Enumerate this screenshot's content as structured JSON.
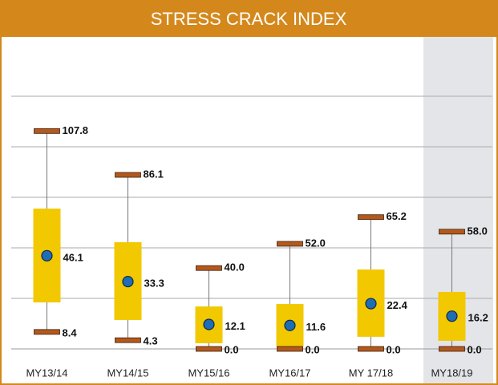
{
  "chart_data": {
    "type": "box",
    "title": "STRESS CRACK INDEX",
    "categories": [
      "MY13/14",
      "MY14/15",
      "MY15/16",
      "MY16/17",
      "MY 17/18",
      "MY18/19"
    ],
    "max": [
      107.8,
      86.1,
      40,
      52,
      65.2,
      58
    ],
    "max_labels": [
      "107.8",
      "86.1",
      "40.0",
      "52.0",
      "65.2",
      "58.0"
    ],
    "min": [
      8.4,
      4.3,
      0,
      0,
      0,
      0
    ],
    "min_labels": [
      "8.4",
      "4.3",
      "0.0",
      "0.0",
      "0.0",
      "0.0"
    ],
    "mean": [
      46.1,
      33.3,
      12.1,
      11.6,
      22.4,
      16.2
    ],
    "q3": [
      69.4,
      52.8,
      21,
      22.2,
      39.3,
      28.2
    ],
    "q1": [
      23,
      14.3,
      2.8,
      1.2,
      6,
      4
    ],
    "box_color": "#f2c800",
    "cap_color": "#b5581c",
    "mean_color": "#1f6db5",
    "highlight": "MY18/19",
    "ylim": [
      0,
      150
    ],
    "yticks": [
      0,
      25,
      50,
      75,
      100,
      125
    ],
    "grid": true
  }
}
